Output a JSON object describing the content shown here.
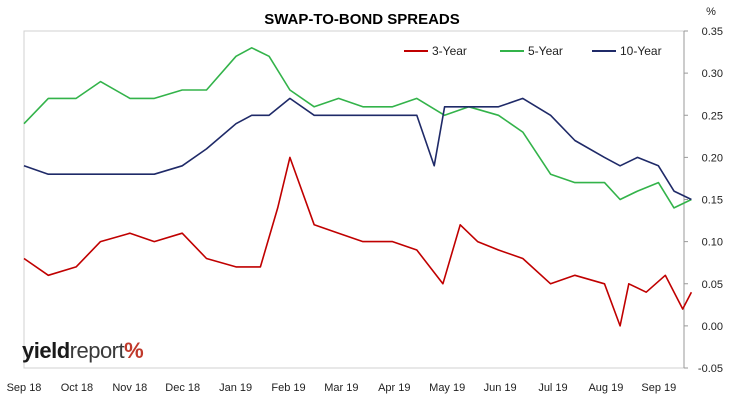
{
  "chart_data": {
    "type": "line",
    "title": "SWAP-TO-BOND SPREADS",
    "y_unit": "%",
    "ylim": [
      -0.05,
      0.35
    ],
    "y_ticks": [
      "0.35",
      "0.30",
      "0.25",
      "0.20",
      "0.15",
      "0.10",
      "0.05",
      "0.00",
      "-0.05"
    ],
    "x_ticks": [
      "Sep 18",
      "Oct 18",
      "Nov 18",
      "Dec 18",
      "Jan 19",
      "Feb 19",
      "Mar 19",
      "Apr 19",
      "May 19",
      "Jun 19",
      "Jul 19",
      "Aug 19",
      "Sep 19"
    ],
    "legend_position": "top-right",
    "grid": false,
    "series": [
      {
        "name": "3-Year",
        "color": "#c00000",
        "x": [
          "2018-09-01",
          "2018-09-15",
          "2018-10-01",
          "2018-10-15",
          "2018-11-01",
          "2018-11-15",
          "2018-12-01",
          "2018-12-15",
          "2019-01-01",
          "2019-01-15",
          "2019-01-25",
          "2019-02-01",
          "2019-02-15",
          "2019-03-01",
          "2019-03-15",
          "2019-04-01",
          "2019-04-15",
          "2019-04-30",
          "2019-05-10",
          "2019-05-20",
          "2019-06-01",
          "2019-06-15",
          "2019-07-01",
          "2019-07-15",
          "2019-08-01",
          "2019-08-10",
          "2019-08-15",
          "2019-08-25",
          "2019-09-05",
          "2019-09-15",
          "2019-09-20"
        ],
        "y": [
          0.08,
          0.06,
          0.07,
          0.1,
          0.11,
          0.1,
          0.11,
          0.08,
          0.07,
          0.07,
          0.14,
          0.2,
          0.12,
          0.11,
          0.1,
          0.1,
          0.09,
          0.05,
          0.12,
          0.1,
          0.09,
          0.08,
          0.05,
          0.06,
          0.05,
          0.0,
          0.05,
          0.04,
          0.06,
          0.02,
          0.04
        ]
      },
      {
        "name": "5-Year",
        "color": "#33b34a",
        "x": [
          "2018-09-01",
          "2018-09-15",
          "2018-10-01",
          "2018-10-15",
          "2018-11-01",
          "2018-11-15",
          "2018-12-01",
          "2018-12-15",
          "2019-01-01",
          "2019-01-10",
          "2019-01-20",
          "2019-02-01",
          "2019-02-15",
          "2019-03-01",
          "2019-03-15",
          "2019-04-01",
          "2019-04-15",
          "2019-05-01",
          "2019-05-15",
          "2019-06-01",
          "2019-06-15",
          "2019-07-01",
          "2019-07-15",
          "2019-08-01",
          "2019-08-10",
          "2019-08-20",
          "2019-09-01",
          "2019-09-10",
          "2019-09-20"
        ],
        "y": [
          0.24,
          0.27,
          0.27,
          0.29,
          0.27,
          0.27,
          0.28,
          0.28,
          0.32,
          0.33,
          0.32,
          0.28,
          0.26,
          0.27,
          0.26,
          0.26,
          0.27,
          0.25,
          0.26,
          0.25,
          0.23,
          0.18,
          0.17,
          0.17,
          0.15,
          0.16,
          0.17,
          0.14,
          0.15
        ]
      },
      {
        "name": "10-Year",
        "color": "#1f2a68",
        "x": [
          "2018-09-01",
          "2018-09-15",
          "2018-10-01",
          "2018-10-15",
          "2018-11-01",
          "2018-11-15",
          "2018-12-01",
          "2018-12-15",
          "2019-01-01",
          "2019-01-10",
          "2019-01-20",
          "2019-02-01",
          "2019-02-15",
          "2019-03-01",
          "2019-03-15",
          "2019-04-01",
          "2019-04-15",
          "2019-04-25",
          "2019-05-01",
          "2019-05-15",
          "2019-06-01",
          "2019-06-15",
          "2019-07-01",
          "2019-07-15",
          "2019-08-01",
          "2019-08-10",
          "2019-08-20",
          "2019-09-01",
          "2019-09-10",
          "2019-09-20"
        ],
        "y": [
          0.19,
          0.18,
          0.18,
          0.18,
          0.18,
          0.18,
          0.19,
          0.21,
          0.24,
          0.25,
          0.25,
          0.27,
          0.25,
          0.25,
          0.25,
          0.25,
          0.25,
          0.19,
          0.26,
          0.26,
          0.26,
          0.27,
          0.25,
          0.22,
          0.2,
          0.19,
          0.2,
          0.19,
          0.16,
          0.15
        ]
      }
    ]
  },
  "branding": {
    "part1": "yield",
    "part2": "report",
    "part3": "%"
  }
}
